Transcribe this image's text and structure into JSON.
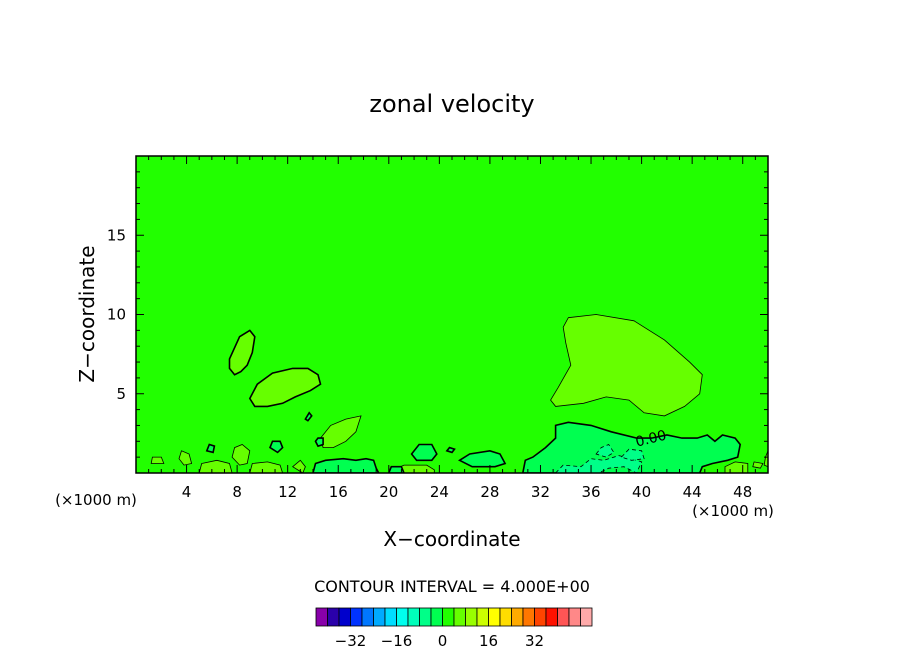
{
  "chart_data": {
    "type": "contour",
    "title": "zonal velocity",
    "xlabel": "X−coordinate",
    "ylabel": "Z−coordinate",
    "x_unit_left": "(×1000 m)",
    "x_unit_right": "(×1000 m)",
    "xlim": [
      0,
      50
    ],
    "ylim": [
      0,
      20
    ],
    "x_ticks": [
      4,
      8,
      12,
      16,
      20,
      24,
      28,
      32,
      36,
      40,
      44,
      48
    ],
    "x_tick_labels": [
      "4",
      "8",
      "12",
      "16",
      "20",
      "24",
      "28",
      "32",
      "36",
      "40",
      "44",
      "48"
    ],
    "y_ticks": [
      5,
      10,
      15
    ],
    "y_tick_labels": [
      "5",
      "10",
      "15"
    ],
    "background_level_color": "#22ff00",
    "contour_interval_label": "CONTOUR INTERVAL = 4.000E+00",
    "contour_label": "0.00",
    "regions": [
      {
        "level": "4",
        "fill": "#66ff00",
        "outline": "thin",
        "points": [
          [
            34.2,
            9.8
          ],
          [
            36.4,
            10
          ],
          [
            39.4,
            9.6
          ],
          [
            41.8,
            8.4
          ],
          [
            43.8,
            7
          ],
          [
            44.8,
            6.2
          ],
          [
            44.6,
            5
          ],
          [
            43.4,
            4.2
          ],
          [
            41.8,
            3.6
          ],
          [
            40.2,
            3.8
          ],
          [
            39,
            4.6
          ],
          [
            37.2,
            4.8
          ],
          [
            35.4,
            4.4
          ],
          [
            33.2,
            4.2
          ],
          [
            32.8,
            4.6
          ],
          [
            33.4,
            5.4
          ],
          [
            34.4,
            6.8
          ],
          [
            34,
            8.2
          ],
          [
            33.8,
            9.2
          ]
        ]
      },
      {
        "level": "4",
        "fill": "#66ff00",
        "outline": "thick",
        "points": [
          [
            7.4,
            7.2
          ],
          [
            8.2,
            8.6
          ],
          [
            9,
            9
          ],
          [
            9.4,
            8.6
          ],
          [
            9.2,
            7.6
          ],
          [
            8.8,
            6.8
          ],
          [
            8.3,
            6.4
          ],
          [
            7.8,
            6.2
          ],
          [
            7.4,
            6.6
          ]
        ]
      },
      {
        "level": "4",
        "fill": "#66ff00",
        "outline": "thick",
        "points": [
          [
            9,
            4.7
          ],
          [
            9.6,
            5.6
          ],
          [
            10.8,
            6.3
          ],
          [
            12.4,
            6.6
          ],
          [
            13.6,
            6.6
          ],
          [
            14.4,
            6.2
          ],
          [
            14.6,
            5.6
          ],
          [
            13.8,
            5.2
          ],
          [
            12.6,
            4.8
          ],
          [
            11.6,
            4.4
          ],
          [
            10.4,
            4.2
          ],
          [
            9.4,
            4.2
          ]
        ]
      },
      {
        "level": "4",
        "fill": "#66ff00",
        "outline": "thin",
        "points": [
          [
            14.6,
            2.2
          ],
          [
            15.4,
            3
          ],
          [
            16.6,
            3.4
          ],
          [
            17.8,
            3.6
          ],
          [
            17.4,
            2.6
          ],
          [
            16.6,
            2
          ],
          [
            15.6,
            1.6
          ],
          [
            14.8,
            1.6
          ]
        ]
      },
      {
        "level": "4",
        "fill": "#66ff00",
        "outline": "thin",
        "points": [
          [
            7.6,
            1
          ],
          [
            7.8,
            1.6
          ],
          [
            8.4,
            1.8
          ],
          [
            9,
            1.4
          ],
          [
            8.8,
            0.6
          ],
          [
            8.2,
            0.5
          ]
        ]
      },
      {
        "level": "4",
        "fill": "#66ff00",
        "outline": "thin",
        "points": [
          [
            1.2,
            0.6
          ],
          [
            1.3,
            1
          ],
          [
            2,
            1
          ],
          [
            2.2,
            0.6
          ]
        ]
      },
      {
        "level": "4",
        "fill": "#66ff00",
        "outline": "thin",
        "points": [
          [
            3.4,
            0.9
          ],
          [
            3.6,
            1.4
          ],
          [
            4.2,
            1.2
          ],
          [
            4.4,
            0.6
          ],
          [
            3.8,
            0.5
          ]
        ]
      },
      {
        "level": "4",
        "fill": "#66ff00",
        "outline": "thin",
        "points": [
          [
            49.8,
            1
          ],
          [
            50,
            1.4
          ],
          [
            50,
            0.4
          ],
          [
            49.7,
            0.5
          ]
        ]
      },
      {
        "level": "4",
        "fill": "#66ff00",
        "outline": "thin",
        "points": [
          [
            48.8,
            0.4
          ],
          [
            49.4,
            0.3
          ],
          [
            49.6,
            0.6
          ],
          [
            48.9,
            0.7
          ]
        ]
      },
      {
        "level": "4",
        "fill": "#66ff00",
        "outline": "thin",
        "points": [
          [
            5.2,
            0.6
          ],
          [
            6.4,
            0.8
          ],
          [
            7.4,
            0.6
          ],
          [
            7.6,
            0
          ],
          [
            5,
            0
          ]
        ]
      },
      {
        "level": "4",
        "fill": "#66ff00",
        "outline": "thin",
        "points": [
          [
            9.2,
            0.6
          ],
          [
            10.4,
            0.7
          ],
          [
            11.4,
            0.5
          ],
          [
            11.6,
            0
          ],
          [
            9,
            0
          ]
        ]
      },
      {
        "level": "4",
        "fill": "#66ff00",
        "outline": "thin",
        "points": [
          [
            20.4,
            0.2
          ],
          [
            21.2,
            0.5
          ],
          [
            23,
            0.5
          ],
          [
            23.6,
            0.2
          ],
          [
            23.6,
            0
          ],
          [
            20.2,
            0
          ]
        ]
      },
      {
        "level": "4",
        "fill": "#66ff00",
        "outline": "thin",
        "points": [
          [
            12.4,
            0.4
          ],
          [
            13,
            0.8
          ],
          [
            13.4,
            0.4
          ],
          [
            13.2,
            0
          ]
        ]
      },
      {
        "level": "4",
        "fill": "#66ff00",
        "outline": "thin",
        "points": [
          [
            46.6,
            0.4
          ],
          [
            47.4,
            0.7
          ],
          [
            48.4,
            0.6
          ],
          [
            48.4,
            0
          ],
          [
            46.6,
            0
          ]
        ]
      },
      {
        "level": "-4",
        "fill": "#00ff50",
        "outline": "thick",
        "points": [
          [
            30.6,
            0
          ],
          [
            30.8,
            0.8
          ],
          [
            31.4,
            1
          ],
          [
            32.4,
            1.6
          ],
          [
            33.2,
            2.2
          ],
          [
            33.2,
            3
          ],
          [
            34.2,
            3.2
          ],
          [
            36,
            3
          ],
          [
            37.6,
            2.6
          ],
          [
            39.6,
            2.2
          ],
          [
            40.8,
            2.2
          ],
          [
            42,
            2.4
          ],
          [
            43.2,
            2.2
          ],
          [
            44.4,
            2.2
          ],
          [
            45.2,
            2.4
          ],
          [
            45.8,
            2
          ],
          [
            46.4,
            2.4
          ],
          [
            47.4,
            2.2
          ],
          [
            47.8,
            1.8
          ],
          [
            47.6,
            1
          ],
          [
            46.8,
            0.8
          ],
          [
            45.6,
            0.6
          ],
          [
            44.8,
            0.4
          ],
          [
            44.6,
            0
          ]
        ]
      },
      {
        "level": "-4",
        "fill": "#00ff50",
        "outline": "thick",
        "points": [
          [
            14,
            0
          ],
          [
            14.2,
            0.6
          ],
          [
            15,
            0.8
          ],
          [
            16.4,
            0.9
          ],
          [
            17.4,
            0.8
          ],
          [
            18.2,
            0.9
          ],
          [
            18.8,
            0.8
          ],
          [
            19,
            0.3
          ],
          [
            19.2,
            0
          ]
        ]
      },
      {
        "level": "-4",
        "fill": "#00ff50",
        "outline": "thick",
        "points": [
          [
            21.8,
            1.2
          ],
          [
            22.4,
            1.8
          ],
          [
            23.4,
            1.8
          ],
          [
            23.8,
            1.2
          ],
          [
            23.4,
            0.8
          ],
          [
            22.2,
            0.8
          ]
        ]
      },
      {
        "level": "-4",
        "fill": "#00ff50",
        "outline": "thick",
        "points": [
          [
            25.6,
            0.8
          ],
          [
            26.4,
            1.2
          ],
          [
            28,
            1.4
          ],
          [
            28.8,
            1.2
          ],
          [
            29.2,
            0.6
          ],
          [
            28.4,
            0.4
          ],
          [
            26.6,
            0.4
          ]
        ]
      },
      {
        "level": "-4",
        "fill": "#00ff50",
        "outline": "thick",
        "points": [
          [
            10.6,
            1.6
          ],
          [
            10.8,
            2
          ],
          [
            11.4,
            2
          ],
          [
            11.6,
            1.6
          ],
          [
            11.2,
            1.3
          ]
        ]
      },
      {
        "level": "-4",
        "fill": "#00ff50",
        "outline": "thick",
        "points": [
          [
            20,
            0
          ],
          [
            20.2,
            0.4
          ],
          [
            21,
            0.4
          ],
          [
            21.2,
            0
          ]
        ]
      },
      {
        "level": "-4",
        "fill": "#00ff50",
        "outline": "thick",
        "points": [
          [
            14.2,
            2
          ],
          [
            14.4,
            2.2
          ],
          [
            14.8,
            2.2
          ],
          [
            14.8,
            1.8
          ],
          [
            14.4,
            1.7
          ]
        ]
      },
      {
        "level": "-4",
        "fill": "#00ff50",
        "outline": "thick",
        "points": [
          [
            13.4,
            3.4
          ],
          [
            13.7,
            3.8
          ],
          [
            13.9,
            3.6
          ],
          [
            13.6,
            3.3
          ]
        ]
      },
      {
        "level": "-4",
        "fill": "#00ff50",
        "outline": "thick",
        "points": [
          [
            5.6,
            1.4
          ],
          [
            5.8,
            1.8
          ],
          [
            6.2,
            1.7
          ],
          [
            6.1,
            1.3
          ]
        ]
      },
      {
        "level": "-4",
        "fill": "#00ff50",
        "outline": "thick",
        "points": [
          [
            24.6,
            1.4
          ],
          [
            24.8,
            1.6
          ],
          [
            25.2,
            1.5
          ],
          [
            25,
            1.3
          ]
        ]
      },
      {
        "level": "-8",
        "fill": "#00ff88",
        "outline": "dashed",
        "points": [
          [
            33.2,
            0
          ],
          [
            33.8,
            0.5
          ],
          [
            35.2,
            0.4
          ],
          [
            36,
            0.9
          ],
          [
            37,
            0.8
          ],
          [
            38.2,
            1.1
          ],
          [
            39.2,
            0.9
          ],
          [
            40,
            0.7
          ],
          [
            39.6,
            0
          ],
          [
            38.6,
            0.4
          ],
          [
            37.4,
            0.3
          ],
          [
            36.6,
            0
          ]
        ]
      },
      {
        "level": "-8",
        "fill": "#00ff88",
        "outline": "dashed",
        "points": [
          [
            36.4,
            1.2
          ],
          [
            36.8,
            1.6
          ],
          [
            37.4,
            1.8
          ],
          [
            37.8,
            1.3
          ],
          [
            37.2,
            1
          ]
        ]
      },
      {
        "level": "-8",
        "fill": "#00ff88",
        "outline": "dashed",
        "points": [
          [
            38.4,
            1
          ],
          [
            39,
            1.5
          ],
          [
            40,
            1.4
          ],
          [
            40.2,
            0.9
          ],
          [
            39.2,
            0.8
          ]
        ]
      }
    ],
    "colorbar": {
      "colors": [
        "#8800aa",
        "#2a00aa",
        "#0000cc",
        "#0033ff",
        "#0077ff",
        "#00aaff",
        "#00ddff",
        "#00ffee",
        "#00ffbb",
        "#00ff88",
        "#00ff50",
        "#22ff00",
        "#66ff00",
        "#99ff00",
        "#ccff00",
        "#ffff00",
        "#ffdd00",
        "#ffaa00",
        "#ff7700",
        "#ff4400",
        "#ff1100",
        "#ff5555",
        "#ff8888",
        "#ffaaaa"
      ],
      "labels": [
        "−32",
        "−16",
        "0",
        "16",
        "32"
      ]
    }
  }
}
